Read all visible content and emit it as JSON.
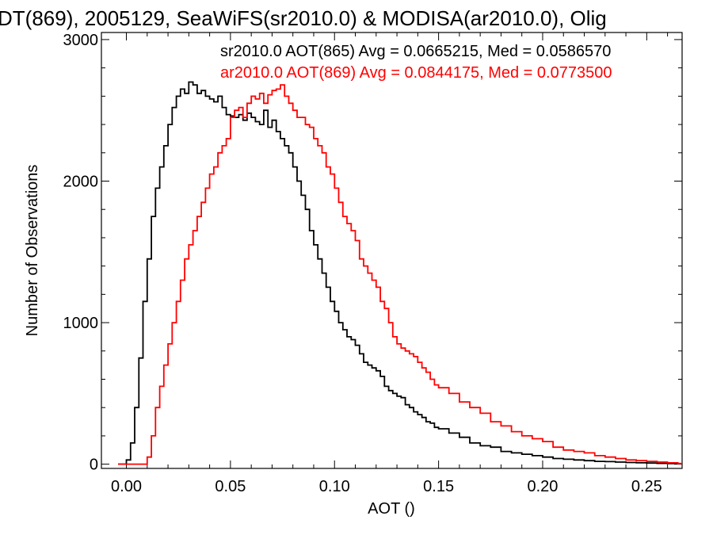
{
  "chart_data": {
    "type": "line",
    "title": "DT(869), 2005129, SeaWiFS(sr2010.0) & MODISA(ar2010.0), Olig",
    "xlabel": "AOT ()",
    "ylabel": "Number of Observations",
    "xlim": [
      -0.012,
      0.267
    ],
    "ylim": [
      -30,
      3050
    ],
    "x_ticks": [
      0.0,
      0.05,
      0.1,
      0.15,
      0.2,
      0.25
    ],
    "x_tick_labels": [
      "0.00",
      "0.05",
      "0.10",
      "0.15",
      "0.20",
      "0.25"
    ],
    "y_ticks": [
      0,
      1000,
      2000,
      3000
    ],
    "y_tick_labels": [
      "0",
      "1000",
      "2000",
      "3000"
    ],
    "grid": false,
    "legend": "top-right",
    "series": [
      {
        "name": "sr2010.0 AOT(865) Avg = 0.0665215, Med = 0.0586570",
        "color": "#000000",
        "x": [
          -0.004,
          0.0,
          0.002,
          0.004,
          0.006,
          0.008,
          0.01,
          0.012,
          0.014,
          0.016,
          0.018,
          0.02,
          0.022,
          0.024,
          0.026,
          0.028,
          0.03,
          0.032,
          0.034,
          0.036,
          0.038,
          0.04,
          0.042,
          0.044,
          0.046,
          0.048,
          0.05,
          0.052,
          0.054,
          0.056,
          0.058,
          0.06,
          0.062,
          0.064,
          0.066,
          0.068,
          0.07,
          0.072,
          0.074,
          0.076,
          0.078,
          0.08,
          0.082,
          0.084,
          0.086,
          0.088,
          0.09,
          0.092,
          0.094,
          0.096,
          0.098,
          0.1,
          0.102,
          0.104,
          0.106,
          0.108,
          0.11,
          0.112,
          0.114,
          0.116,
          0.118,
          0.12,
          0.122,
          0.124,
          0.126,
          0.128,
          0.13,
          0.132,
          0.134,
          0.136,
          0.138,
          0.14,
          0.142,
          0.144,
          0.146,
          0.148,
          0.15,
          0.155,
          0.16,
          0.165,
          0.17,
          0.175,
          0.18,
          0.185,
          0.19,
          0.195,
          0.2,
          0.205,
          0.21,
          0.215,
          0.22,
          0.225,
          0.23,
          0.235,
          0.24,
          0.245,
          0.25,
          0.255,
          0.26,
          0.265
        ],
        "values": [
          0,
          30,
          150,
          400,
          750,
          1150,
          1450,
          1750,
          1950,
          2100,
          2250,
          2400,
          2520,
          2600,
          2650,
          2620,
          2700,
          2680,
          2620,
          2640,
          2600,
          2580,
          2560,
          2600,
          2520,
          2470,
          2460,
          2450,
          2470,
          2430,
          2480,
          2450,
          2420,
          2400,
          2500,
          2380,
          2430,
          2350,
          2300,
          2250,
          2200,
          2100,
          2000,
          1900,
          1800,
          1650,
          1550,
          1450,
          1350,
          1250,
          1150,
          1080,
          1000,
          950,
          900,
          880,
          840,
          780,
          720,
          700,
          680,
          660,
          620,
          550,
          520,
          500,
          480,
          470,
          420,
          400,
          370,
          350,
          330,
          300,
          290,
          260,
          250,
          220,
          190,
          150,
          130,
          120,
          90,
          80,
          70,
          60,
          50,
          40,
          35,
          30,
          25,
          20,
          18,
          15,
          12,
          10,
          8,
          6,
          5,
          3
        ]
      },
      {
        "name": "ar2010.0 AOT(869) Avg = 0.0844175, Med = 0.0773500",
        "color": "#ff0000",
        "x": [
          -0.004,
          0.008,
          0.01,
          0.012,
          0.014,
          0.016,
          0.018,
          0.02,
          0.022,
          0.024,
          0.026,
          0.028,
          0.03,
          0.032,
          0.034,
          0.036,
          0.038,
          0.04,
          0.042,
          0.044,
          0.046,
          0.048,
          0.05,
          0.052,
          0.054,
          0.056,
          0.058,
          0.06,
          0.062,
          0.064,
          0.066,
          0.068,
          0.07,
          0.072,
          0.074,
          0.076,
          0.078,
          0.08,
          0.082,
          0.084,
          0.086,
          0.088,
          0.09,
          0.092,
          0.094,
          0.096,
          0.098,
          0.1,
          0.102,
          0.104,
          0.106,
          0.108,
          0.11,
          0.112,
          0.114,
          0.116,
          0.118,
          0.12,
          0.122,
          0.124,
          0.126,
          0.128,
          0.13,
          0.132,
          0.134,
          0.136,
          0.138,
          0.14,
          0.142,
          0.144,
          0.146,
          0.148,
          0.15,
          0.155,
          0.16,
          0.165,
          0.17,
          0.175,
          0.18,
          0.185,
          0.19,
          0.195,
          0.2,
          0.205,
          0.21,
          0.215,
          0.22,
          0.225,
          0.23,
          0.235,
          0.24,
          0.245,
          0.25,
          0.255,
          0.26,
          0.265
        ],
        "values": [
          0,
          0,
          50,
          200,
          400,
          550,
          700,
          850,
          1000,
          1150,
          1300,
          1450,
          1550,
          1650,
          1750,
          1850,
          1950,
          2050,
          2100,
          2200,
          2250,
          2300,
          2450,
          2500,
          2520,
          2450,
          2550,
          2600,
          2580,
          2620,
          2550,
          2610,
          2640,
          2650,
          2680,
          2600,
          2550,
          2500,
          2450,
          2450,
          2400,
          2380,
          2300,
          2250,
          2200,
          2100,
          2050,
          1950,
          1850,
          1750,
          1700,
          1650,
          1580,
          1450,
          1400,
          1350,
          1300,
          1250,
          1150,
          1100,
          1000,
          900,
          850,
          820,
          800,
          780,
          760,
          720,
          680,
          650,
          600,
          560,
          540,
          500,
          440,
          400,
          360,
          300,
          270,
          230,
          200,
          180,
          160,
          120,
          100,
          90,
          80,
          60,
          50,
          40,
          30,
          25,
          20,
          15,
          10,
          5
        ]
      }
    ]
  }
}
